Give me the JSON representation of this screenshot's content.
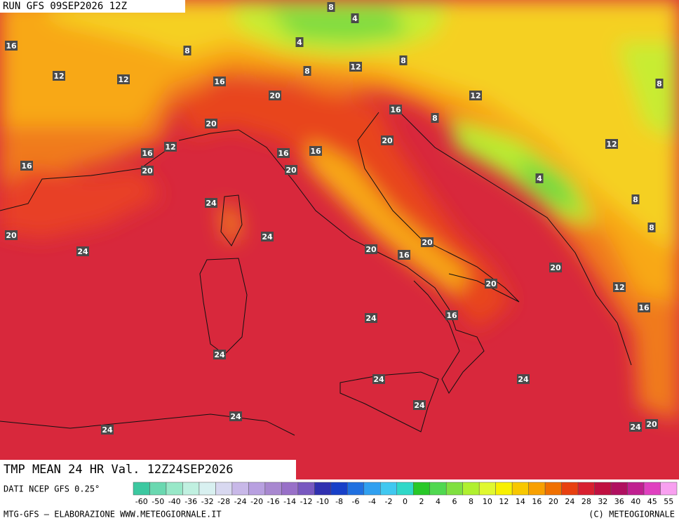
{
  "header": {
    "run": "RUN GFS 09SEP2026 12Z"
  },
  "map": {
    "contour_labels": [
      8,
      4,
      16,
      8,
      4,
      12,
      12,
      8,
      12,
      8,
      16,
      20,
      12,
      8,
      16,
      8,
      20,
      12,
      16,
      16,
      16,
      20,
      12,
      16,
      20,
      20,
      4,
      8,
      24,
      8,
      20,
      24,
      24,
      20,
      16,
      20,
      20,
      20,
      12,
      16,
      16,
      24,
      24,
      24,
      24,
      24,
      24,
      24,
      24,
      20
    ]
  },
  "footer": {
    "title": "TMP MEAN 24 HR Val. 12Z24SEP2026",
    "source": "DATI NCEP GFS 0.25°",
    "credit": "MTG-GFS — ELABORAZIONE WWW.METEOGIORNALE.IT",
    "copyright": "(C) METEOGIORNALE"
  },
  "colorbar": {
    "labels": [
      -60,
      -50,
      -40,
      -36,
      -32,
      -28,
      -24,
      -20,
      -16,
      -14,
      -12,
      -10,
      -8,
      -6,
      -4,
      -2,
      0,
      2,
      4,
      6,
      8,
      10,
      12,
      14,
      16,
      20,
      24,
      28,
      32,
      36,
      40,
      45,
      55
    ],
    "colors": [
      "#3cc8a0",
      "#6ad8b0",
      "#98e8c8",
      "#c0f0e0",
      "#d8f0f0",
      "#d8d8f0",
      "#c8b8e8",
      "#b8a0e0",
      "#a888d0",
      "#9870c8",
      "#7858c0",
      "#3030b0",
      "#1840c8",
      "#2070e0",
      "#30a0f0",
      "#40c8f0",
      "#30d8c8",
      "#28c828",
      "#50d850",
      "#80e040",
      "#b0f030",
      "#e0f830",
      "#f8f000",
      "#f8c800",
      "#f8a000",
      "#f07000",
      "#e84010",
      "#d82030",
      "#c01040",
      "#b01060",
      "#c02090",
      "#e040c0",
      "#f8a0f0"
    ]
  }
}
